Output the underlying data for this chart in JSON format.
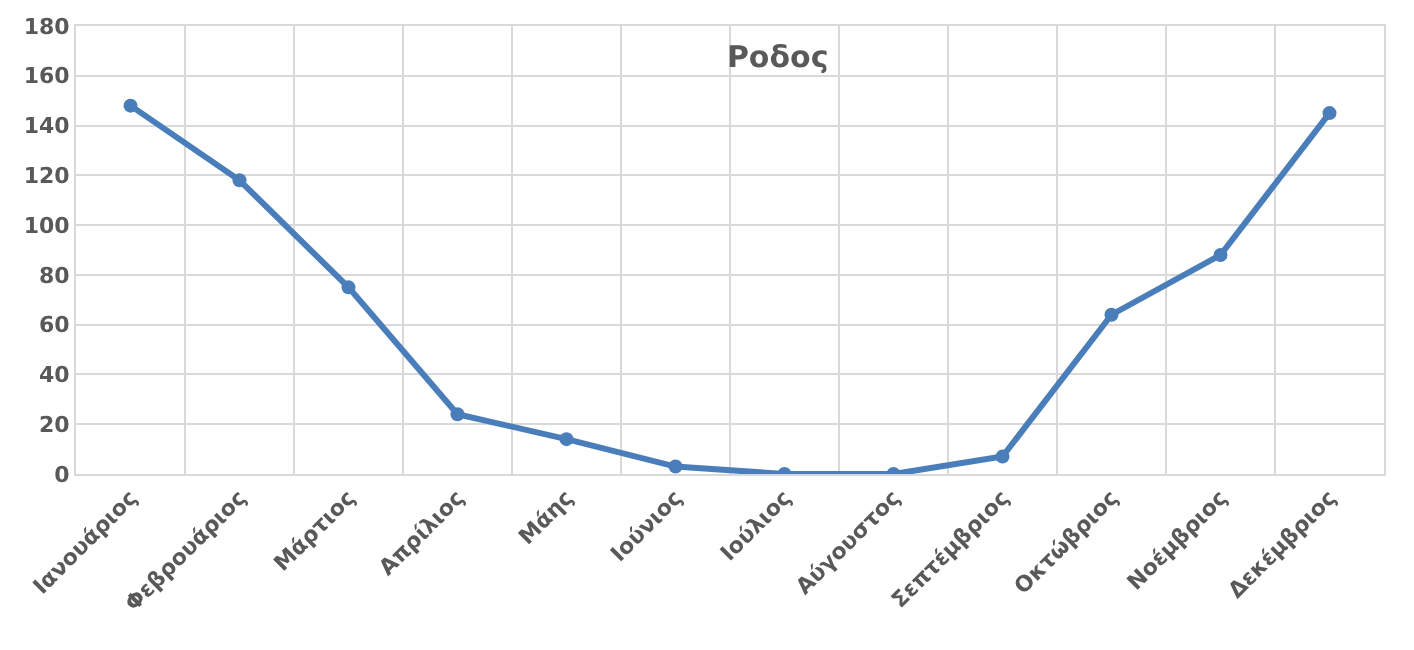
{
  "chart_data": {
    "type": "line",
    "title": "Ροδος",
    "categories": [
      "Ιανουάριος",
      "Φεβρουάριος",
      "Μάρτιος",
      "Απρίλιος",
      "Μάης",
      "Ιούνιος",
      "Ιούλιος",
      "Αύγουστος",
      "Σεπτέμβριος",
      "Οκτώβριος",
      "Νοέμβριος",
      "Δεκέμβριος"
    ],
    "series": [
      {
        "color": "#4a7ebb",
        "values": [
          148,
          118,
          75,
          24,
          14,
          3,
          0,
          0,
          7,
          64,
          88,
          145
        ]
      }
    ],
    "ylim": [
      0,
      180
    ],
    "yticks": [
      0,
      20,
      40,
      60,
      80,
      100,
      120,
      140,
      160,
      180
    ],
    "grid": true,
    "marker": "circle",
    "line_style": "solid"
  }
}
